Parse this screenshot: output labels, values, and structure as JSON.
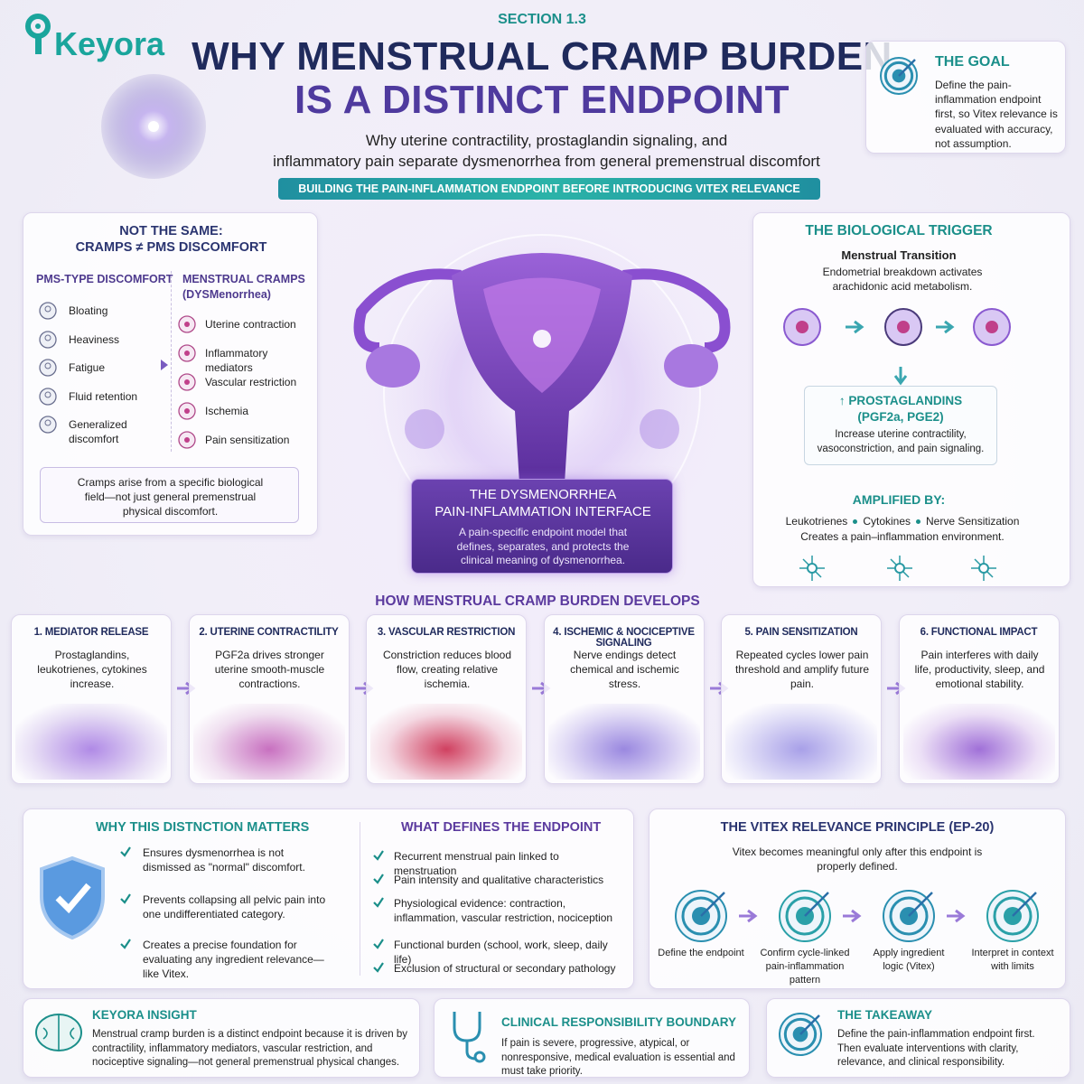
{
  "header": {
    "logo": "Keyora",
    "section": "SECTION 1.3",
    "title_lines": [
      "WHY MENSTRUAL CRAMP BURDEN",
      "IS A DISTINCT ENDPOINT"
    ],
    "subtitle_lines": [
      "Why uterine contractility, prostaglandin signaling, and",
      "inflammatory pain separate dysmenorrhea from general premenstrual discomfort"
    ],
    "banner": "BUILDING THE PAIN-INFLAMMATION ENDPOINT BEFORE INTRODUCING VITEX RELEVANCE"
  },
  "goal": {
    "title": "THE GOAL",
    "text": "Define the pain-inflammation endpoint first, so Vitex relevance is evaluated with accuracy, not assumption."
  },
  "comparison": {
    "title_lines": [
      "NOT THE SAME:",
      "CRAMPS ≠ PMS DISCOMFORT"
    ],
    "left": {
      "heading": "PMS-TYPE DISCOMFORT",
      "items": [
        "Bloating",
        "Heaviness",
        "Fatigue",
        "Fluid retention",
        "Generalized discomfort"
      ]
    },
    "right": {
      "heading_lines": [
        "MENSTRUAL CRAMPS",
        "(DYSMenorrhea)"
      ],
      "items": [
        "Uterine contraction",
        "Inflammatory mediators",
        "Vascular restriction",
        "Ischemia",
        "Pain sensitization"
      ]
    },
    "note": "Cramps arise from a specific biological field—not just general premenstrual physical discomfort."
  },
  "center": {
    "title_lines": [
      "THE DYSMENORRHEA",
      "PAIN-INFLAMMATION INTERFACE"
    ],
    "text": "A pain-specific endpoint model that defines, separates, and protects the clinical meaning of dysmenorrhea."
  },
  "trigger": {
    "title": "THE BIOLOGICAL TRIGGER",
    "subtitle": "Menstrual Transition",
    "text": "Endometrial breakdown activates arachidonic acid metabolism.",
    "prostaglandins": {
      "title": "↑ PROSTAGLANDINS",
      "subtitle": "(PGF2a, PGE2)",
      "text": "Increase uterine contractility, vasoconstriction, and pain signaling."
    },
    "amplified": {
      "title": "AMPLIFIED BY:",
      "items": [
        "Leukotrienes",
        "Cytokines",
        "Nerve Sensitization"
      ],
      "text": "Creates a pain–inflammation environment."
    }
  },
  "development": {
    "title": "HOW MENSTRUAL CRAMP BURDEN DEVELOPS",
    "steps": [
      {
        "title": "1. MEDIATOR RELEASE",
        "text": "Prostaglandins, leukotrienes, cytokines increase."
      },
      {
        "title": "2. UTERINE CONTRACTILITY",
        "text": "PGF2a drives stronger uterine smooth-muscle contractions."
      },
      {
        "title": "3. VASCULAR RESTRICTION",
        "text": "Constriction reduces blood flow, creating relative ischemia."
      },
      {
        "title": "4. ISCHEMIC & NOCICEPTIVE SIGNALING",
        "text": "Nerve endings detect chemical and ischemic stress."
      },
      {
        "title": "5. PAIN SENSITIZATION",
        "text": "Repeated cycles lower pain threshold and amplify future pain."
      },
      {
        "title": "6. FUNCTIONAL IMPACT",
        "text": "Pain interferes with daily life, productivity, sleep, and emotional stability."
      }
    ]
  },
  "matters": {
    "title": "WHY THIS DISTNCTION MATTERS",
    "items": [
      "Ensures dysmenorrhea is not dismissed as \"normal\" discomfort.",
      "Prevents collapsing all pelvic pain into one undifferentiated category.",
      "Creates a precise foundation for evaluating any ingredient relevance—like Vitex."
    ]
  },
  "defines": {
    "title": "WHAT DEFINES THE ENDPOINT",
    "items": [
      "Recurrent menstrual pain linked to menstruation",
      "Pain intensity and qualitative characteristics",
      "Physiological evidence: contraction, inflammation, vascular restriction, nociception",
      "Functional burden (school, work, sleep, daily life)",
      "Exclusion of structural or secondary pathology"
    ]
  },
  "vitex": {
    "title": "THE VITEX RELEVANCE PRINCIPLE (EP-20)",
    "text": "Vitex becomes meaningful only after this endpoint is properly defined.",
    "steps": [
      "Define the endpoint",
      "Confirm cycle-linked pain-inflammation pattern",
      "Apply ingredient logic (Vitex)",
      "Interpret in context with limits"
    ]
  },
  "insight": {
    "title": "KEYORA INSIGHT",
    "text": "Menstrual cramp burden is a distinct endpoint because it is driven by contractility, inflammatory mediators, vascular restriction, and nociceptive signaling—not general premenstrual physical changes."
  },
  "boundary": {
    "title": "CLINICAL RESPONSIBILITY BOUNDARY",
    "text": "If pain is severe, progressive, atypical, or nonresponsive, medical evaluation is essential and must take priority."
  },
  "takeaway": {
    "title": "THE TAKEAWAY",
    "text": "Define the pain-inflammation endpoint first. Then evaluate interventions with clarity, relevance, and clinical responsibility."
  }
}
